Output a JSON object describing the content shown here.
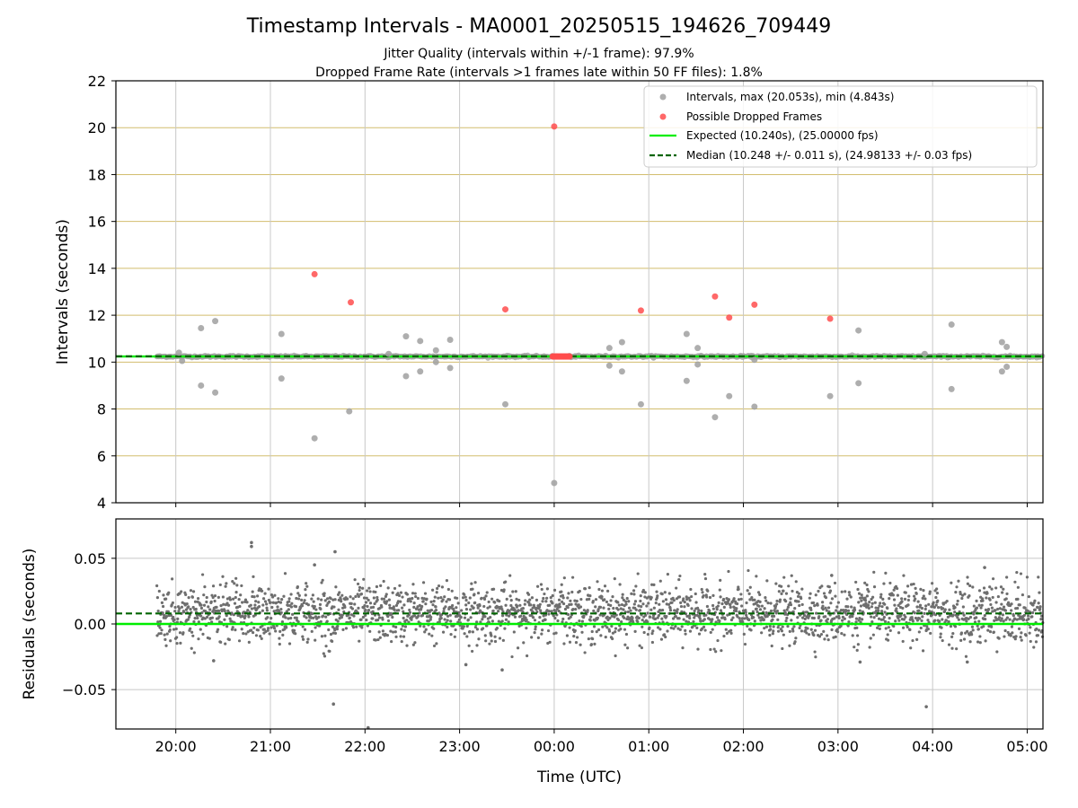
{
  "title": "Timestamp Intervals - MA0001_20250515_194626_709449",
  "subtitle_1": "Jitter Quality (intervals within +/-1 frame): 97.9%",
  "subtitle_2": "Dropped Frame Rate (intervals >1 frames late within 50 FF files): 1.8%",
  "xlabel": "Time (UTC)",
  "colors": {
    "intervals": "#a0a0a0",
    "dropped": "#ff4d4d",
    "expected": "#00ee00",
    "median": "#006400",
    "residual": "#6e6e6e",
    "hgrid_top": "#d2bd6e",
    "grid": "#c8c8c8"
  },
  "chart_data": [
    {
      "type": "scatter",
      "ylabel": "Intervals (seconds)",
      "ylim": [
        4,
        22
      ],
      "yticks": [
        4,
        6,
        8,
        10,
        12,
        14,
        16,
        18,
        20,
        22
      ],
      "xlim": [
        "19:22",
        "05:10"
      ],
      "xticks": [
        "20:00",
        "21:00",
        "22:00",
        "23:00",
        "00:00",
        "01:00",
        "02:00",
        "03:00",
        "04:00",
        "05:00"
      ],
      "grid": true,
      "legend_position": "top-right",
      "legend": [
        {
          "label": "Intervals, max (20.053s), min (4.843s)",
          "marker": "dot",
          "color": "#a0a0a0"
        },
        {
          "label": "Possible Dropped Frames",
          "marker": "dot",
          "color": "#ff4d4d"
        },
        {
          "label": "Expected (10.240s), (25.00000 fps)",
          "marker": "line",
          "color": "#00ee00"
        },
        {
          "label": "Median (10.248 +/- 0.011 s), (24.98133 +/- 0.03 fps)",
          "marker": "dashed",
          "color": "#006400"
        }
      ],
      "expected": 10.24,
      "median": 10.248,
      "main_band": {
        "x_start": "19:48",
        "x_end": "05:10",
        "y": 10.24
      },
      "outliers": [
        {
          "x": "20:02",
          "y": 10.4
        },
        {
          "x": "20:04",
          "y": 10.05
        },
        {
          "x": "20:16",
          "y": 11.45
        },
        {
          "x": "20:16",
          "y": 9.0
        },
        {
          "x": "20:25",
          "y": 11.75
        },
        {
          "x": "20:25",
          "y": 8.7
        },
        {
          "x": "21:07",
          "y": 11.2
        },
        {
          "x": "21:07",
          "y": 9.3
        },
        {
          "x": "21:28",
          "y": 6.75
        },
        {
          "x": "21:50",
          "y": 7.9
        },
        {
          "x": "22:15",
          "y": 10.35
        },
        {
          "x": "22:26",
          "y": 11.1
        },
        {
          "x": "22:26",
          "y": 9.4
        },
        {
          "x": "22:35",
          "y": 10.9
        },
        {
          "x": "22:35",
          "y": 9.6
        },
        {
          "x": "22:45",
          "y": 10.5
        },
        {
          "x": "22:45",
          "y": 10.0
        },
        {
          "x": "22:54",
          "y": 10.95
        },
        {
          "x": "22:54",
          "y": 9.75
        },
        {
          "x": "23:29",
          "y": 8.2
        },
        {
          "x": "00:00",
          "y": 4.843
        },
        {
          "x": "00:35",
          "y": 10.6
        },
        {
          "x": "00:35",
          "y": 9.85
        },
        {
          "x": "00:43",
          "y": 10.85
        },
        {
          "x": "00:43",
          "y": 9.6
        },
        {
          "x": "00:55",
          "y": 8.2
        },
        {
          "x": "01:24",
          "y": 11.2
        },
        {
          "x": "01:24",
          "y": 9.2
        },
        {
          "x": "01:31",
          "y": 10.6
        },
        {
          "x": "01:31",
          "y": 9.9
        },
        {
          "x": "01:42",
          "y": 7.65
        },
        {
          "x": "01:51",
          "y": 8.55
        },
        {
          "x": "02:07",
          "y": 8.1
        },
        {
          "x": "02:07",
          "y": 10.1
        },
        {
          "x": "02:55",
          "y": 8.55
        },
        {
          "x": "03:13",
          "y": 11.35
        },
        {
          "x": "03:13",
          "y": 9.1
        },
        {
          "x": "03:55",
          "y": 10.35
        },
        {
          "x": "04:12",
          "y": 11.6
        },
        {
          "x": "04:12",
          "y": 8.85
        },
        {
          "x": "04:44",
          "y": 10.85
        },
        {
          "x": "04:44",
          "y": 9.6
        },
        {
          "x": "04:47",
          "y": 10.65
        },
        {
          "x": "04:47",
          "y": 9.8
        }
      ],
      "dropped": [
        {
          "x": "00:00",
          "y": 20.053
        },
        {
          "x": "21:28",
          "y": 13.75
        },
        {
          "x": "21:51",
          "y": 12.55
        },
        {
          "x": "23:29",
          "y": 12.25
        },
        {
          "x": "00:55",
          "y": 12.2
        },
        {
          "x": "01:42",
          "y": 12.8
        },
        {
          "x": "01:51",
          "y": 11.9
        },
        {
          "x": "02:07",
          "y": 12.45
        },
        {
          "x": "02:55",
          "y": 11.85
        }
      ],
      "dropped_cluster": {
        "x_start": "23:59",
        "x_end": "00:10",
        "y": 10.24
      }
    },
    {
      "type": "scatter",
      "ylabel": "Residuals (seconds)",
      "ylim": [
        -0.08,
        0.08
      ],
      "yticks": [
        -0.05,
        0.0,
        0.05
      ],
      "ytick_labels": [
        "−0.05",
        "0.00",
        "0.05"
      ],
      "xlim": [
        "19:22",
        "05:10"
      ],
      "grid": true,
      "expected": 0.0,
      "median": 0.008,
      "residual_cloud": {
        "x_start": "19:48",
        "x_end": "05:10",
        "mean": 0.008,
        "sd": 0.011
      },
      "residual_outliers": [
        {
          "x": "20:48",
          "y": 0.062
        },
        {
          "x": "20:48",
          "y": 0.059
        },
        {
          "x": "21:41",
          "y": 0.055
        },
        {
          "x": "21:28",
          "y": 0.045
        },
        {
          "x": "21:40",
          "y": -0.061
        },
        {
          "x": "22:02",
          "y": -0.079
        },
        {
          "x": "23:27",
          "y": -0.035
        },
        {
          "x": "20:24",
          "y": -0.028
        },
        {
          "x": "02:56",
          "y": 0.037
        },
        {
          "x": "03:14",
          "y": -0.029
        },
        {
          "x": "03:56",
          "y": -0.063
        },
        {
          "x": "04:22",
          "y": -0.029
        },
        {
          "x": "04:33",
          "y": 0.043
        },
        {
          "x": "23:04",
          "y": -0.031
        }
      ]
    }
  ]
}
